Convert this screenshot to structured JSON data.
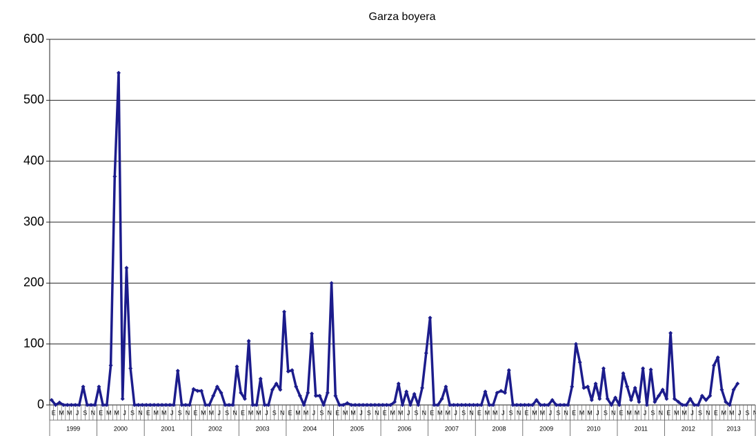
{
  "chart_data": {
    "type": "line",
    "title": "Garza boyera",
    "categories": [
      "E",
      null,
      "M",
      null,
      "M",
      null,
      "J",
      null,
      "S",
      null,
      "N",
      null,
      "E",
      null,
      "M",
      null,
      "M",
      null,
      "J",
      null,
      "S",
      null,
      "N",
      null,
      "E",
      null,
      "M",
      null,
      "M",
      null,
      "J",
      null,
      "S",
      null,
      "N",
      null,
      "E",
      null,
      "M",
      null,
      "M",
      null,
      "J",
      null,
      "S",
      null,
      "N",
      null,
      "E",
      null,
      "M",
      null,
      "M",
      null,
      "J",
      null,
      "S",
      null,
      "N",
      null,
      "E",
      null,
      "M",
      null,
      "M",
      null,
      "J",
      null,
      "S",
      null,
      "N",
      null,
      "E",
      null,
      "M",
      null,
      "M",
      null,
      "J",
      null,
      "S",
      null,
      "N",
      null,
      "E",
      null,
      "M",
      null,
      "M",
      null,
      "J",
      null,
      "S",
      null,
      "N",
      null,
      "E",
      null,
      "M",
      null,
      "M",
      null,
      "J",
      null,
      "S",
      null,
      "N",
      null,
      "E",
      null,
      "M",
      null,
      "M",
      null,
      "J",
      null,
      "S",
      null,
      "N",
      null,
      "E",
      null,
      "M",
      null,
      "M",
      null,
      "J",
      null,
      "S",
      null,
      "N",
      null,
      "E",
      null,
      "M",
      null,
      "M",
      null,
      "J",
      null,
      "S",
      null,
      "N",
      null,
      "E",
      null,
      "M",
      null,
      "M",
      null,
      "J",
      null,
      "S",
      null,
      "N",
      null,
      "E",
      null,
      "M",
      null,
      "M",
      null,
      "J",
      null,
      "S",
      null,
      "N",
      null,
      "E",
      null,
      "M",
      null,
      "M",
      null,
      "J",
      null,
      "S",
      null,
      "N"
    ],
    "year_groups": [
      "1999",
      "2000",
      "2001",
      "2002",
      "2003",
      "2004",
      "2005",
      "2006",
      "2007",
      "2008",
      "2009",
      "2010",
      "2011",
      "2012",
      "2013"
    ],
    "color": "#1c1c8c",
    "values": [
      8,
      0,
      4,
      0,
      0,
      0,
      0,
      0,
      30,
      0,
      0,
      0,
      30,
      0,
      0,
      65,
      375,
      545,
      10,
      225,
      60,
      0,
      0,
      0,
      0,
      0,
      0,
      0,
      0,
      0,
      0,
      0,
      56,
      0,
      0,
      0,
      26,
      23,
      23,
      0,
      0,
      15,
      30,
      20,
      0,
      0,
      0,
      63,
      20,
      10,
      105,
      0,
      0,
      43,
      0,
      0,
      25,
      35,
      25,
      153,
      55,
      57,
      30,
      15,
      0,
      20,
      117,
      15,
      15,
      0,
      20,
      200,
      15,
      0,
      0,
      3,
      0,
      0,
      0,
      0,
      0,
      0,
      0,
      0,
      0,
      0,
      0,
      5,
      35,
      0,
      22,
      0,
      18,
      0,
      28,
      85,
      143,
      0,
      0,
      10,
      30,
      0,
      0,
      0,
      0,
      0,
      0,
      0,
      0,
      0,
      22,
      0,
      0,
      20,
      23,
      20,
      57,
      0,
      0,
      0,
      0,
      0,
      0,
      8,
      0,
      0,
      0,
      8,
      0,
      0,
      0,
      0,
      30,
      100,
      70,
      28,
      30,
      8,
      35,
      10,
      60,
      10,
      0,
      12,
      0,
      52,
      30,
      8,
      28,
      5,
      60,
      0,
      58,
      5,
      15,
      25,
      10,
      118,
      10,
      5,
      0,
      0,
      10,
      0,
      0,
      15,
      8,
      15,
      65,
      78,
      25,
      5,
      0,
      25,
      35,
      null,
      null,
      null,
      null
    ],
    "ylim": [
      0,
      600
    ],
    "yticks": [
      0,
      100,
      200,
      300,
      400,
      500,
      600
    ],
    "grid": true
  }
}
